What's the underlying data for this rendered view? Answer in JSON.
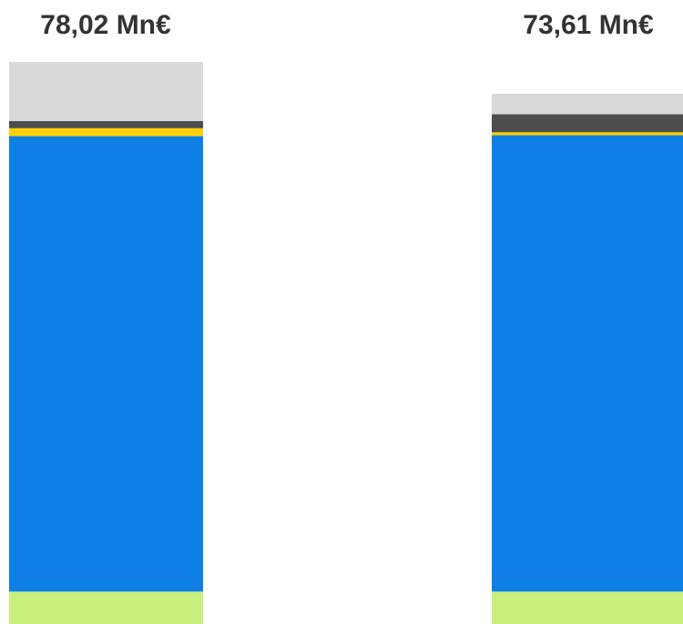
{
  "chart_data": {
    "type": "bar",
    "stacked": true,
    "categories": [
      "",
      ""
    ],
    "totals_text": [
      "78,02 Mn€",
      "73,61 Mn€"
    ],
    "totals": [
      78.02,
      73.61
    ],
    "ylim": [
      0,
      78.02
    ],
    "grid": false,
    "legend": "none",
    "series": [
      {
        "color": "#c8f07c",
        "values": [
          4.5,
          4.5
        ]
      },
      {
        "color": "#0e80e5",
        "values": [
          63.22,
          63.34
        ]
      },
      {
        "color": "#ffd100",
        "values": [
          1.1,
          0.41
        ]
      },
      {
        "color": "#4d4d4d",
        "values": [
          1.0,
          2.5
        ]
      },
      {
        "color": "#d9d9d9",
        "values": [
          8.2,
          2.86
        ]
      }
    ]
  }
}
